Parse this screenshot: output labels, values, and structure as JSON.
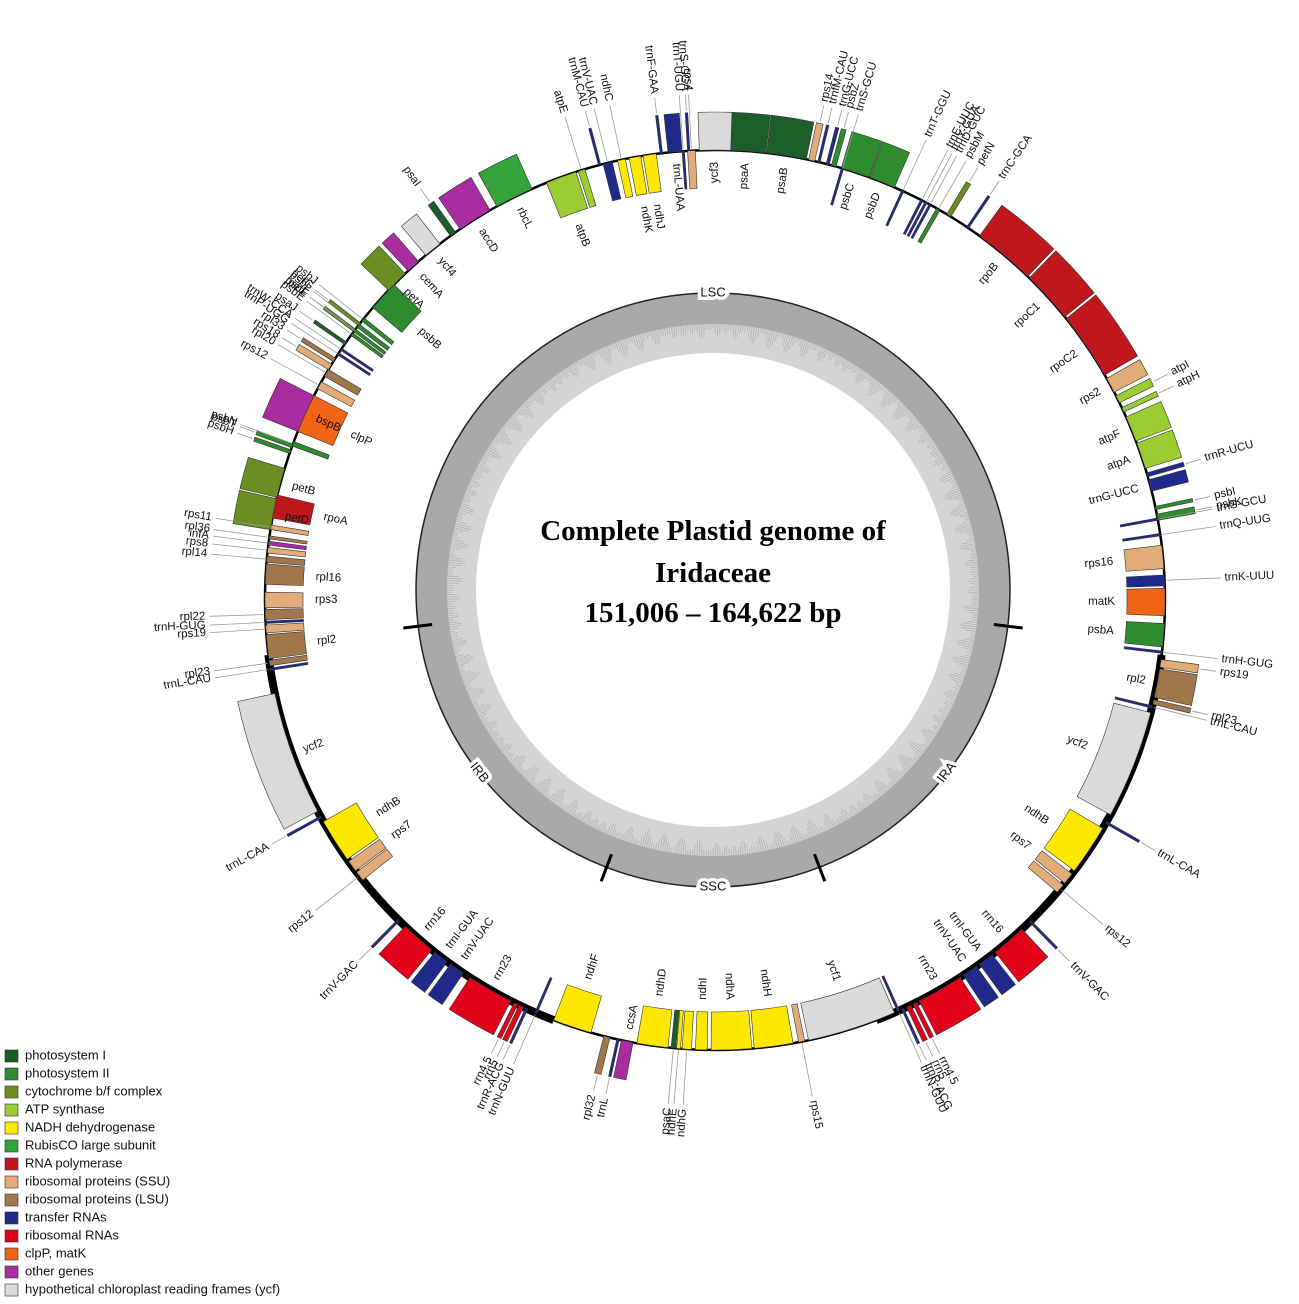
{
  "title": [
    "Complete Plastid genome of",
    "Iridaceae",
    "151,006 – 164,622 bp"
  ],
  "regions": [
    "LSC",
    "IRA",
    "SSC",
    "IRB"
  ],
  "legend": {
    "items": [
      {
        "label": "photosystem I",
        "color": "#1b5e2a",
        "genes": [
          "psaA",
          "psaB",
          "psaC",
          "psaI",
          "psaJ"
        ]
      },
      {
        "label": "photosystem II",
        "color": "#2e8b2e",
        "genes": [
          "psbA",
          "psbB",
          "psbC",
          "psbD",
          "psbE",
          "psbF",
          "psbH",
          "psbI",
          "psbJ",
          "psbK",
          "psbL",
          "psbM",
          "psbN",
          "psbT",
          "psbZ"
        ]
      },
      {
        "label": "cytochrome b/f complex",
        "color": "#6b8e23",
        "genes": [
          "petA",
          "petB",
          "petD",
          "petG",
          "petL",
          "petN"
        ]
      },
      {
        "label": "ATP synthase",
        "color": "#9acd32",
        "genes": [
          "atpA",
          "atpB",
          "atpE",
          "atpF",
          "atpH",
          "atpI"
        ]
      },
      {
        "label": "NADH dehydrogenase",
        "color": "#ffe800",
        "genes": [
          "ndhA",
          "ndhB",
          "ndhB",
          "ndhC",
          "ndhD",
          "ndhE",
          "ndhF",
          "ndhG",
          "ndhH",
          "ndhI",
          "ndhJ",
          "ndhK"
        ]
      },
      {
        "label": "RubisCO large subunit",
        "color": "#33a33a",
        "genes": [
          "rbcL"
        ]
      },
      {
        "label": "RNA polymerase",
        "color": "#c0161e",
        "genes": [
          "rpoA",
          "rpoB",
          "rpoC1",
          "rpoC2"
        ]
      },
      {
        "label": "ribosomal proteins (SSU)",
        "color": "#e2ac78",
        "genes": [
          "rps2",
          "rps3",
          "rps4",
          "rps7",
          "rps7",
          "rps8",
          "rps11",
          "rps12",
          "rps12",
          "rps12",
          "rps14",
          "rps15",
          "rps16",
          "rps18",
          "rps19",
          "rps19"
        ]
      },
      {
        "label": "ribosomal proteins (LSU)",
        "color": "#a0774a",
        "genes": [
          "rpl2",
          "rpl2",
          "rpl14",
          "rpl16",
          "rpl20",
          "rpl22",
          "rpl23",
          "rpl23",
          "rpl32",
          "rpl33",
          "rpl36"
        ]
      },
      {
        "label": "transfer RNAs",
        "color": "#1f2a8a",
        "genes": [
          "trnH-GUG",
          "trnK-UUU",
          "trnQ-UUG",
          "trnS-GCU",
          "trnG-UCC",
          "trnR-UCU",
          "trnC-GCA",
          "trnD-GUC",
          "trnY-GUA",
          "trnE-UUC",
          "trnT-GGU",
          "trnS-GCU",
          "trnG-UCC",
          "trnfM-CAU",
          "trnS-GGA",
          "trnT-UGU",
          "trnL-UAA",
          "trnF-GAA",
          "trnV-UAC",
          "trnM-CAU",
          "trnW-CCA",
          "trnP-UGG",
          "trnH-GUG",
          "trnL-CAU",
          "trnL-CAA",
          "trnV-GAC",
          "trnI-GUA",
          "trnV-UAC",
          "trnR-ACG",
          "trnN-GUU",
          "trnL",
          "trnN-GUU",
          "trnR-ACG",
          "trnV-UAC",
          "trnI-GUA",
          "trnV-GAC",
          "trnL-CAA",
          "trnL-CAU"
        ]
      },
      {
        "label": "ribosomal RNAs",
        "color": "#e2001a",
        "genes": [
          "rrn16",
          "rrn23",
          "rrn4.5",
          "rrn5",
          "rrn16",
          "rrn23",
          "rrn4.5",
          "rrn5"
        ]
      },
      {
        "label": "clpP, matK",
        "color": "#f06418",
        "genes": [
          "clpP",
          "matK"
        ]
      },
      {
        "label": "other genes",
        "color": "#a92ca0",
        "genes": [
          "accD",
          "bspB",
          "ccsA",
          "cemA",
          "infA"
        ]
      },
      {
        "label": "hypothetical chloroplast reading frames (ycf)",
        "color": "#dadada",
        "genes": [
          "ycf1",
          "ycf2",
          "ycf2",
          "ycf3",
          "ycf4"
        ]
      }
    ]
  }
}
